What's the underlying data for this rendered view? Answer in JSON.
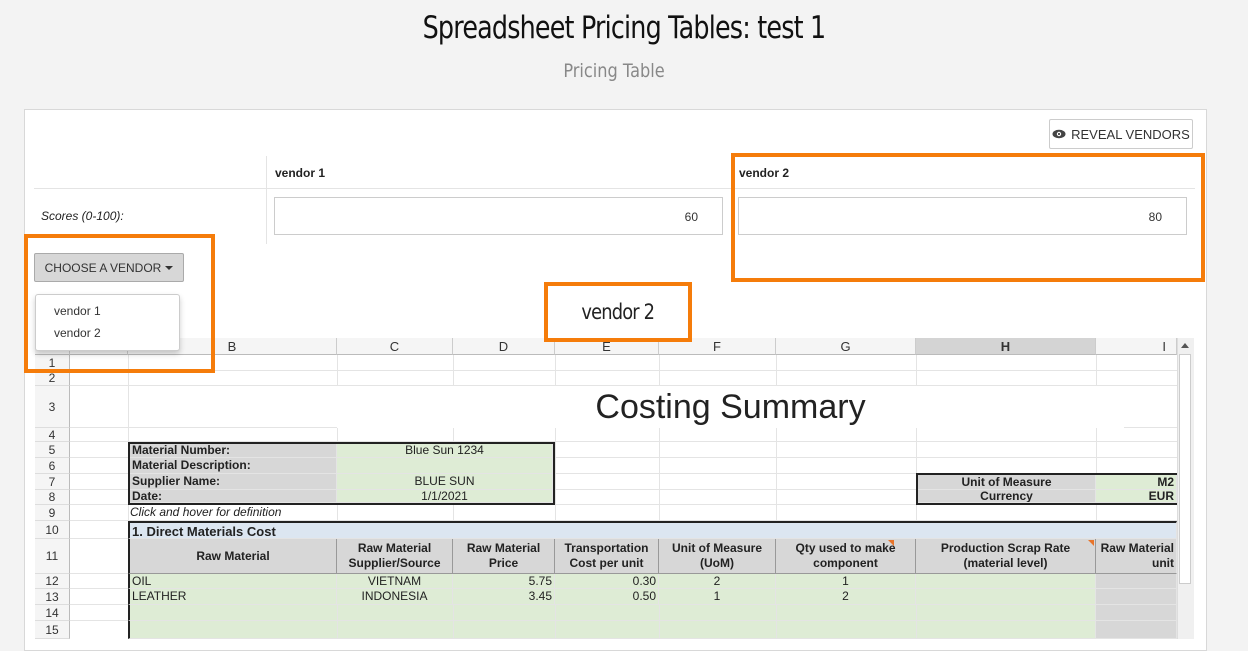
{
  "page": {
    "title": "Spreadsheet Pricing Tables: test 1",
    "subtitle": "Pricing Table"
  },
  "toolbar": {
    "reveal_label": "REVEAL VENDORS",
    "reveal_icon": "eye-icon"
  },
  "vendors": {
    "headers": [
      "vendor 1",
      "vendor 2"
    ],
    "scores_label": "Scores (0-100):",
    "scores": [
      "60",
      "80"
    ]
  },
  "chooser": {
    "label": "CHOOSE A VENDOR",
    "options": [
      "vendor 1",
      "vendor 2"
    ]
  },
  "selected_vendor": "vendor 2",
  "highlight_color": "#f57c0a",
  "sheet": {
    "columns": [
      "A",
      "B",
      "C",
      "D",
      "E",
      "F",
      "G",
      "H",
      "I"
    ],
    "selected_column": "H",
    "rows": [
      "1",
      "2",
      "3",
      "4",
      "5",
      "6",
      "7",
      "8",
      "9",
      "10",
      "11",
      "12",
      "13",
      "14",
      "15"
    ],
    "title": "Costing Summary",
    "info": {
      "material_number_label": "Material Number:",
      "material_number": "Blue Sun 1234",
      "material_description_label": "Material Description:",
      "supplier_name_label": "Supplier Name:",
      "supplier_name": "BLUE SUN",
      "date_label": "Date:",
      "date": "1/1/2021"
    },
    "uom": {
      "uom_label": "Unit of Measure",
      "uom_value": "M2",
      "currency_label": "Currency",
      "currency_value": "EUR"
    },
    "hint": "Click and hover for definition",
    "section_title": "1. Direct Materials Cost",
    "table_headers": {
      "raw_material": "Raw Material",
      "supplier_l1": "Raw Material",
      "supplier_l2": "Supplier/Source",
      "price_l1": "Raw Material",
      "price_l2": "Price",
      "transport_l1": "Transportation",
      "transport_l2": "Cost per unit",
      "uom_l1": "Unit of Measure",
      "uom_l2": "(UoM)",
      "qty_l1": "Qty used to make",
      "qty_l2": "component",
      "scrap_l1": "Production Scrap Rate",
      "scrap_l2": "(material level)",
      "unit_l1": "Raw Material",
      "unit_l2": "unit"
    },
    "data_rows": [
      {
        "material": "OIL",
        "source": "VIETNAM",
        "price": "5.75",
        "transport": "0.30",
        "uom": "2",
        "qty": "1"
      },
      {
        "material": "LEATHER",
        "source": "INDONESIA",
        "price": "3.45",
        "transport": "0.50",
        "uom": "1",
        "qty": "2"
      }
    ]
  }
}
